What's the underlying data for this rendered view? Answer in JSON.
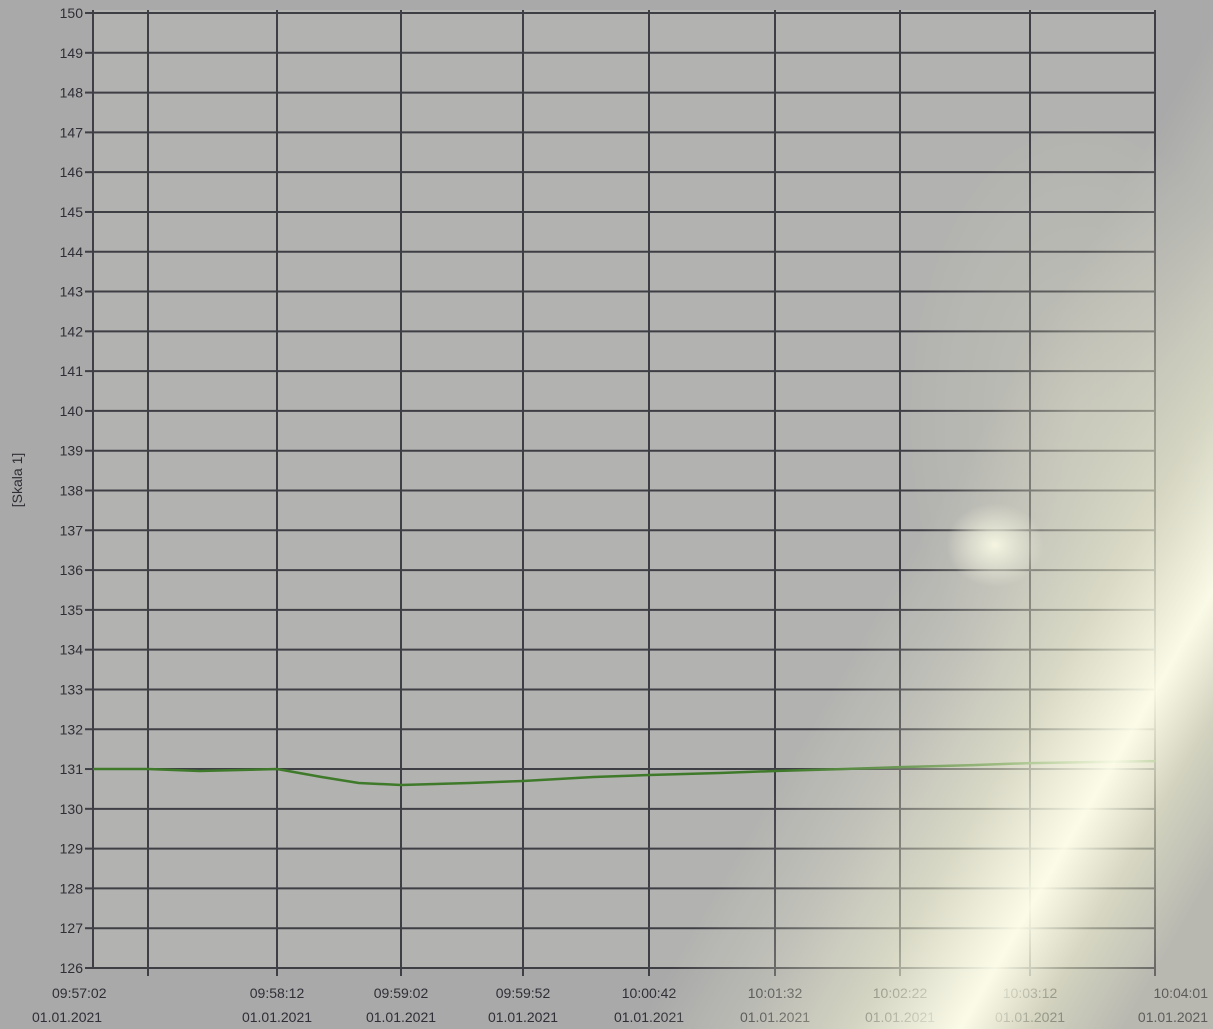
{
  "chart_data": {
    "type": "line",
    "ylabel": "[Skala 1]",
    "ylim": [
      126,
      150
    ],
    "yticks": [
      "126",
      "127",
      "128",
      "129",
      "130",
      "131",
      "132",
      "133",
      "134",
      "135",
      "136",
      "137",
      "138",
      "139",
      "140",
      "141",
      "142",
      "143",
      "144",
      "145",
      "146",
      "147",
      "148",
      "149",
      "150"
    ],
    "xticks": [
      {
        "time": "09:57:02",
        "date": "01.01.2021"
      },
      {
        "time": "09:58:12",
        "date": "01.01.2021"
      },
      {
        "time": "09:59:02",
        "date": "01.01.2021"
      },
      {
        "time": "09:59:52",
        "date": "01.01.2021"
      },
      {
        "time": "10:00:42",
        "date": "01.01.2021"
      },
      {
        "time": "10:01:32",
        "date": "01.01.2021"
      },
      {
        "time": "10:02:22",
        "date": "01.01.2021"
      },
      {
        "time": "10:03:12",
        "date": "01.01.2021"
      },
      {
        "time": "10:04:01",
        "date": "01.01.2021"
      }
    ],
    "grid": true,
    "series": [
      {
        "color": "#3f7a2a",
        "points": [
          {
            "x": "09:57:02",
            "y": 131.0
          },
          {
            "x": "09:57:30",
            "y": 130.95
          },
          {
            "x": "09:58:12",
            "y": 131.0
          },
          {
            "x": "09:58:30",
            "y": 130.8
          },
          {
            "x": "09:58:45",
            "y": 130.65
          },
          {
            "x": "09:59:02",
            "y": 130.6
          },
          {
            "x": "09:59:30",
            "y": 130.65
          },
          {
            "x": "09:59:52",
            "y": 130.7
          },
          {
            "x": "10:00:20",
            "y": 130.8
          },
          {
            "x": "10:00:42",
            "y": 130.85
          },
          {
            "x": "10:01:10",
            "y": 130.9
          },
          {
            "x": "10:01:32",
            "y": 130.95
          },
          {
            "x": "10:02:00",
            "y": 131.0
          },
          {
            "x": "10:02:22",
            "y": 131.05
          },
          {
            "x": "10:02:50",
            "y": 131.1
          },
          {
            "x": "10:03:12",
            "y": 131.15
          },
          {
            "x": "10:04:01",
            "y": 131.2
          }
        ]
      }
    ]
  }
}
